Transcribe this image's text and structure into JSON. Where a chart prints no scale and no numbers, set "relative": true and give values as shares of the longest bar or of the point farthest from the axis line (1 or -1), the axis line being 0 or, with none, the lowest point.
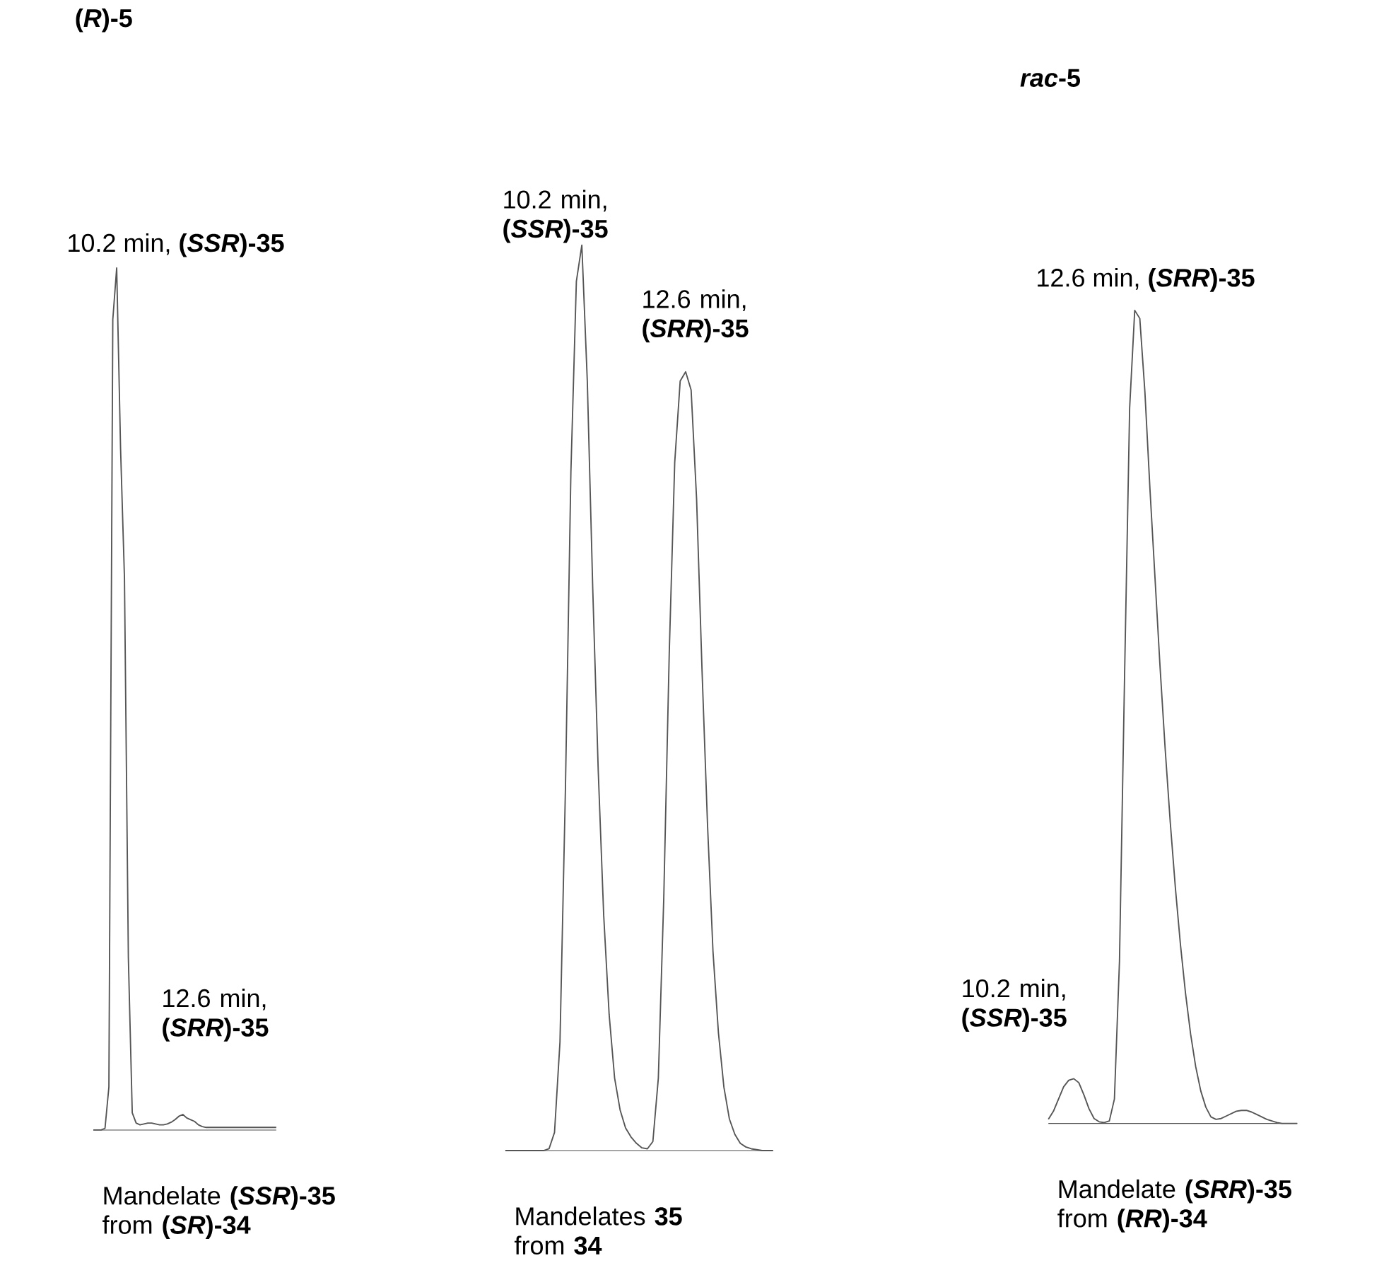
{
  "chart_data": [
    {
      "type": "line",
      "relative": true,
      "title": "**(*R*)-5**",
      "xlabel": "Mandelate **(*SSR*)-35** from **(*SR*)-34**",
      "annotations": [
        "10.2 min, **(*SSR*)-35**",
        "12.6 min, **(*SRR*)-35**"
      ],
      "categories": [
        null,
        null,
        null,
        null,
        null,
        null,
        null,
        null,
        null,
        null,
        null,
        null,
        null,
        null,
        null,
        null,
        null,
        null,
        null,
        null,
        null,
        null,
        null,
        null,
        null,
        null,
        null,
        null,
        null,
        null,
        null,
        null,
        null,
        null,
        null,
        null,
        null,
        null,
        null,
        null,
        null,
        null,
        null,
        null,
        null,
        null,
        null,
        null
      ],
      "series": [
        {
          "color": "#555555",
          "values": [
            0,
            0,
            0,
            0.002,
            0.05,
            0.94,
            1,
            0.79,
            0.64,
            0.2,
            0.02,
            0.008,
            0.006,
            0.007,
            0.008,
            0.008,
            0.007,
            0.006,
            0.006,
            0.007,
            0.009,
            0.012,
            0.016,
            0.018,
            0.014,
            0.012,
            0.01,
            0.006,
            0.004,
            0.003,
            0.003,
            0.003,
            0.003,
            0.003,
            0.003,
            0.003,
            0.003,
            0.003,
            0.003,
            0.003,
            0.003,
            0.003,
            0.003,
            0.003,
            0.003,
            0.003,
            0.003,
            0.003
          ]
        }
      ]
    },
    {
      "type": "line",
      "relative": true,
      "xlabel": "Mandelates **35** from **34**",
      "annotations": [
        "10.2 min, **(*SSR*)-35**",
        "12.6 min, **(*SRR*)-35**"
      ],
      "categories": [
        null,
        null,
        null,
        null,
        null,
        null,
        null,
        null,
        null,
        null,
        null,
        null,
        null,
        null,
        null,
        null,
        null,
        null,
        null,
        null,
        null,
        null,
        null,
        null,
        null,
        null,
        null,
        null,
        null,
        null,
        null,
        null,
        null,
        null,
        null,
        null,
        null,
        null,
        null,
        null,
        null,
        null,
        null,
        null,
        null,
        null,
        null,
        null,
        null,
        null
      ],
      "series": [
        {
          "color": "#555555",
          "values": [
            0,
            0,
            0,
            0,
            0,
            0,
            0,
            0,
            0.002,
            0.02,
            0.12,
            0.4,
            0.75,
            0.96,
            1,
            0.85,
            0.62,
            0.42,
            0.26,
            0.15,
            0.08,
            0.045,
            0.025,
            0.015,
            0.008,
            0.003,
            0.002,
            0.01,
            0.08,
            0.28,
            0.55,
            0.76,
            0.85,
            0.86,
            0.84,
            0.72,
            0.53,
            0.36,
            0.22,
            0.13,
            0.07,
            0.035,
            0.018,
            0.008,
            0.004,
            0.002,
            0.001,
            0,
            0,
            0
          ]
        }
      ]
    },
    {
      "type": "line",
      "relative": true,
      "title": "***rac*-5**",
      "xlabel": "Mandelate **(*SRR*)-35** from **(*RR*)-34**",
      "annotations": [
        "12.6 min, **(*SRR*)-35**",
        "10.2 min, **(*SSR*)-35**"
      ],
      "categories": [
        null,
        null,
        null,
        null,
        null,
        null,
        null,
        null,
        null,
        null,
        null,
        null,
        null,
        null,
        null,
        null,
        null,
        null,
        null,
        null,
        null,
        null,
        null,
        null,
        null,
        null,
        null,
        null,
        null,
        null,
        null,
        null,
        null,
        null,
        null,
        null,
        null,
        null,
        null,
        null,
        null,
        null,
        null,
        null,
        null,
        null,
        null,
        null,
        null,
        null
      ],
      "series": [
        {
          "color": "#555555",
          "values": [
            0.005,
            0.015,
            0.03,
            0.045,
            0.053,
            0.055,
            0.05,
            0.035,
            0.018,
            0.006,
            0.002,
            0.001,
            0.003,
            0.03,
            0.2,
            0.55,
            0.88,
            1,
            0.99,
            0.9,
            0.78,
            0.67,
            0.56,
            0.46,
            0.37,
            0.29,
            0.22,
            0.16,
            0.11,
            0.07,
            0.04,
            0.02,
            0.008,
            0.005,
            0.006,
            0.009,
            0.012,
            0.015,
            0.016,
            0.016,
            0.014,
            0.011,
            0.008,
            0.005,
            0.003,
            0.001,
            0,
            0,
            0,
            0
          ]
        }
      ]
    }
  ]
}
